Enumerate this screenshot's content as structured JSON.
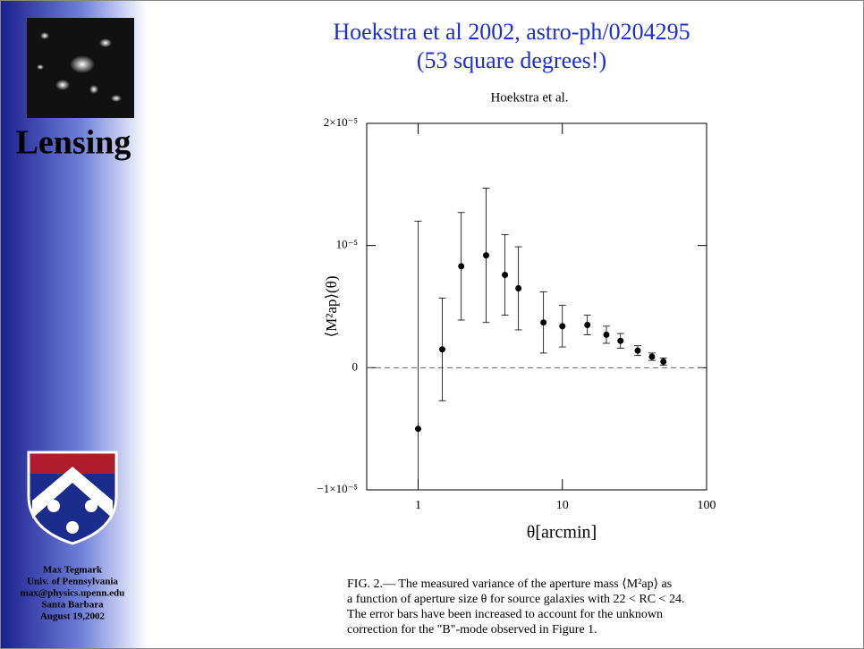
{
  "sidebar": {
    "heading": "Lensing",
    "author": [
      "Max Tegmark",
      "Univ. of Pennsylvania",
      "max@physics.upenn.edu",
      "Santa Barbara",
      "August 19,2002"
    ]
  },
  "slide_title": [
    "Hoekstra et al 2002, astro-ph/0204295",
    "(53 square degrees!)"
  ],
  "caption": [
    "FIG. 2.— The measured variance of the aperture mass ⟨M²ap⟩ as",
    "a function of aperture size θ for source galaxies with 22 < RC < 24.",
    "The error bars have been increased to account for the unknown",
    "correction for the \"B\"-mode observed in Figure 1."
  ],
  "chart_data": {
    "type": "errorbar",
    "title": "Hoekstra et al.",
    "x_label": "θ[arcmin]",
    "y_label": "⟨M²ap⟩(θ)",
    "x": [
      1.0,
      1.47,
      1.99,
      2.96,
      4.0,
      4.96,
      7.4,
      10,
      14.9,
      20.2,
      25.3,
      33.3,
      41.8,
      50.2
    ],
    "values": [
      -5e-06,
      1.5e-06,
      8.3e-06,
      9.2e-06,
      7.6e-06,
      6.5e-06,
      3.7e-06,
      3.4e-06,
      3.5e-06,
      2.7e-06,
      2.2e-06,
      1.4e-06,
      9e-07,
      5e-07
    ],
    "errors": [
      1.7e-05,
      4.2e-06,
      4.4e-06,
      5.5e-06,
      3.3e-06,
      3.4e-06,
      2.5e-06,
      1.7e-06,
      8e-07,
      7e-07,
      6e-07,
      4e-07,
      3e-07,
      3e-07
    ],
    "color": "#000000",
    "xscale": "log",
    "xlim": [
      0.44,
      100
    ],
    "xticks": [
      1,
      10,
      100
    ],
    "ylim": [
      -1e-05,
      2e-05
    ],
    "yticks": [
      {
        "value": -1e-05,
        "label": "−1×10⁻⁵"
      },
      0,
      {
        "value": 1e-05,
        "label": "10⁻⁵"
      },
      {
        "value": 2e-05,
        "label": "2×10⁻⁵"
      }
    ],
    "zero_line": true
  }
}
